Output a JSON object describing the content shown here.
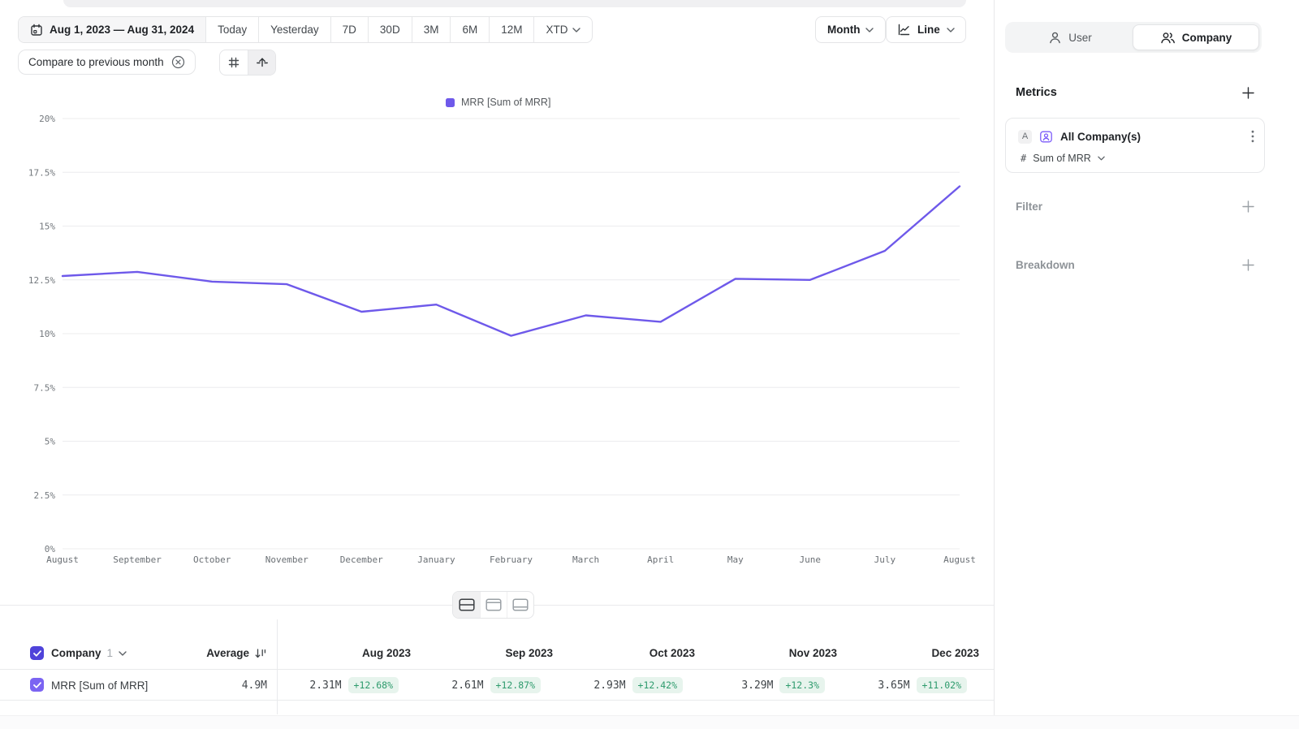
{
  "toolbar": {
    "date_range": "Aug 1, 2023 — Aug 31, 2024",
    "presets": [
      "Today",
      "Yesterday",
      "7D",
      "30D",
      "3M",
      "6M",
      "12M"
    ],
    "xtd_label": "XTD",
    "compare_label": "Compare to previous month",
    "granularity_label": "Month",
    "chart_type_label": "Line"
  },
  "chart_data": {
    "type": "line",
    "title": "",
    "legend_position": "top-center",
    "grid": true,
    "unit": "%",
    "ylim": [
      0,
      20
    ],
    "ytick_labels": [
      "0%",
      "2.5%",
      "5%",
      "7.5%",
      "10%",
      "12.5%",
      "15%",
      "17.5%",
      "20%"
    ],
    "x_labels": [
      "August",
      "September",
      "October",
      "November",
      "December",
      "January",
      "February",
      "March",
      "April",
      "May",
      "June",
      "July",
      "August"
    ],
    "series": [
      {
        "name": "MRR [Sum of MRR]",
        "color": "#6e59ea",
        "values": [
          12.68,
          12.87,
          12.42,
          12.3,
          11.02,
          11.35,
          9.9,
          10.85,
          10.55,
          12.55,
          12.5,
          13.85,
          16.85
        ]
      }
    ]
  },
  "table": {
    "group": {
      "label": "Company",
      "count": "1"
    },
    "average_label": "Average",
    "columns": [
      "Aug 2023",
      "Sep 2023",
      "Oct 2023",
      "Nov 2023",
      "Dec 2023"
    ],
    "rows": [
      {
        "label": "MRR [Sum of MRR]",
        "average": "4.9M",
        "cells": [
          {
            "value": "2.31M",
            "delta": "+12.68%"
          },
          {
            "value": "2.61M",
            "delta": "+12.87%"
          },
          {
            "value": "2.93M",
            "delta": "+12.42%"
          },
          {
            "value": "3.29M",
            "delta": "+12.3%"
          },
          {
            "value": "3.65M",
            "delta": "+11.02%"
          }
        ]
      }
    ]
  },
  "sidebar": {
    "audience_toggle": {
      "user_label": "User",
      "company_label": "Company",
      "selected": "Company"
    },
    "metrics": {
      "title": "Metrics",
      "metric": {
        "series_badge": "A",
        "name": "All Company(s)",
        "value_symbol": "#",
        "aggregation": "Sum of MRR"
      }
    },
    "filter": {
      "label": "Filter"
    },
    "breakdown": {
      "label": "Breakdown"
    }
  },
  "colors": {
    "accent_purple": "#6e59ea",
    "checkbox_header": "#4f43da",
    "checkbox_row": "#7b64f2",
    "delta_green_text": "#2e9b6d",
    "delta_green_bg": "#e7f4ed",
    "gridline": "#ececee"
  }
}
